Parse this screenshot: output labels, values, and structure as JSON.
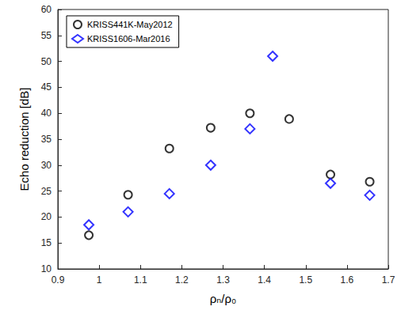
{
  "chart_data": {
    "type": "scatter",
    "x_label": "ρₙ/ρ₀",
    "y_label": "Echo reduction [dB]",
    "xlim": [
      0.9,
      1.7
    ],
    "xticks": [
      0.9,
      1,
      1.1,
      1.2,
      1.3,
      1.4,
      1.5,
      1.6,
      1.7
    ],
    "ylim": [
      10,
      60
    ],
    "yticks": [
      10,
      15,
      20,
      25,
      30,
      35,
      40,
      45,
      50,
      55,
      60
    ],
    "grid": false,
    "legend": "upper left",
    "series": [
      {
        "name": "KRISS441K-May2012",
        "color": "#000000",
        "marker": "circle",
        "x": [
          0.975,
          1.07,
          1.17,
          1.27,
          1.365,
          1.46,
          1.56,
          1.655
        ],
        "values": [
          16.5,
          24.3,
          33.2,
          37.2,
          40.0,
          38.9,
          28.2,
          26.8
        ]
      },
      {
        "name": "KRISS1606-Mar2016",
        "color": "#0000ff",
        "marker": "diamond",
        "x": [
          0.975,
          1.07,
          1.17,
          1.27,
          1.365,
          1.42,
          1.56,
          1.655
        ],
        "values": [
          18.5,
          21.0,
          24.5,
          30.0,
          37.0,
          51.0,
          26.5,
          24.2
        ]
      }
    ]
  }
}
